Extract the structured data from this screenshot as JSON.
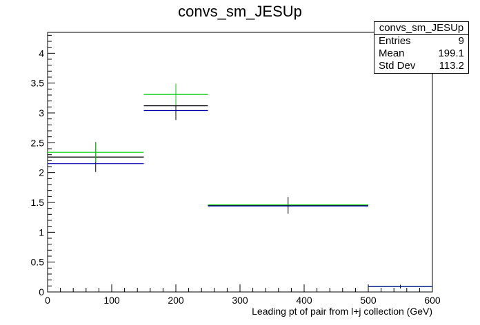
{
  "chart_data": {
    "type": "histogram",
    "title": "convs_sm_JESUp",
    "xlabel": "Leading pt of pair from l+j collection (GeV)",
    "ylabel": "",
    "xlim": [
      0,
      600
    ],
    "ylim": [
      0,
      4.35
    ],
    "x_ticks": [
      "0",
      "100",
      "200",
      "300",
      "400",
      "500",
      "600"
    ],
    "y_ticks": [
      "0",
      "0.5",
      "1",
      "1.5",
      "2",
      "2.5",
      "3",
      "3.5",
      "4"
    ],
    "bins": [
      {
        "lo": 0,
        "hi": 150
      },
      {
        "lo": 150,
        "hi": 250
      },
      {
        "lo": 250,
        "hi": 500
      },
      {
        "lo": 500,
        "hi": 600
      }
    ],
    "series": [
      {
        "color": "#000000",
        "values": [
          2.26,
          3.12,
          1.45,
          0.09
        ],
        "errors": [
          0.25,
          0.24,
          0.14,
          0.03
        ]
      },
      {
        "color": "#00cc00",
        "values": [
          2.34,
          3.31,
          1.46,
          0.09
        ],
        "errors": [
          0.16,
          0.18,
          0.0,
          0.0
        ]
      },
      {
        "color": "#0000aa",
        "values": [
          2.15,
          3.04,
          1.44,
          0.09
        ],
        "errors": [
          0.0,
          0.0,
          0.0,
          0.0
        ]
      }
    ],
    "stats_box": {
      "name": "convs_sm_JESUp",
      "entries_label": "Entries",
      "entries": "9",
      "mean_label": "Mean",
      "mean": "199.1",
      "stddev_label": "Std Dev",
      "stddev": "113.2"
    }
  }
}
